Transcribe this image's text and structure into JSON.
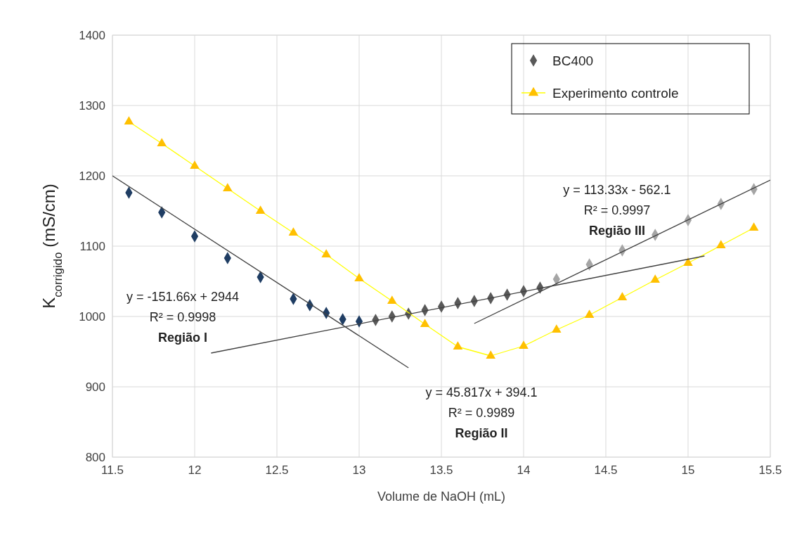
{
  "chart_data": {
    "type": "scatter",
    "xlabel": "Volume de NaOH (mL)",
    "ylabel": "K$_{corrigido}$ (mS/cm)",
    "xlim": [
      11.5,
      15.5
    ],
    "xticks": [
      11.5,
      12,
      12.5,
      13,
      13.5,
      14,
      14.5,
      15,
      15.5
    ],
    "ylim": [
      800,
      1400
    ],
    "yticks": [
      800,
      900,
      1000,
      1100,
      1200,
      1300,
      1400
    ],
    "grid": true,
    "legend": "top right",
    "series": [
      {
        "name": "BC400",
        "marker": "diamond",
        "color": "#595959",
        "x": [
          11.6,
          11.8,
          12.0,
          12.2,
          12.4,
          12.6,
          12.7,
          12.8,
          12.9,
          13.0,
          13.1,
          13.2,
          13.3,
          13.4,
          13.5,
          13.6,
          13.7,
          13.8,
          13.9,
          14.0,
          14.1,
          14.2,
          14.4,
          14.6,
          14.8,
          15.0,
          15.2,
          15.4
        ],
        "values": [
          1176,
          1148,
          1114,
          1083,
          1056,
          1025,
          1016,
          1005,
          996,
          993,
          995,
          1000,
          1004,
          1009,
          1014,
          1019,
          1022,
          1026,
          1031,
          1036,
          1041,
          1053,
          1074,
          1094,
          1116,
          1137,
          1160,
          1181
        ],
        "colors": [
          "#1f3d63",
          "#1f3d63",
          "#1f3d63",
          "#1f3d63",
          "#1f3d63",
          "#1f3d63",
          "#1f3d63",
          "#1f3d63",
          "#1f3d63",
          "#1f3d63",
          "#595959",
          "#595959",
          "#595959",
          "#595959",
          "#595959",
          "#595959",
          "#595959",
          "#595959",
          "#595959",
          "#595959",
          "#595959",
          "#a5a5a5",
          "#a5a5a5",
          "#a5a5a5",
          "#a5a5a5",
          "#a5a5a5",
          "#a5a5a5",
          "#a5a5a5"
        ]
      },
      {
        "name": "Experimento controle",
        "type": "line",
        "marker": "triangle",
        "color": "#ffff00",
        "x": [
          11.6,
          11.8,
          12.0,
          12.2,
          12.4,
          12.6,
          12.8,
          13.0,
          13.2,
          13.4,
          13.6,
          13.8,
          14.0,
          14.2,
          14.4,
          14.6,
          14.8,
          15.0,
          15.2,
          15.4
        ],
        "values": [
          1277,
          1246,
          1214,
          1182,
          1150,
          1119,
          1088,
          1054,
          1022,
          989,
          957,
          944,
          958,
          981,
          1002,
          1027,
          1052,
          1076,
          1101,
          1126
        ],
        "colors": [
          "#ffc000",
          "#ffc000",
          "#ffc000",
          "#ffc000",
          "#ffc000",
          "#ffc000",
          "#ffc000",
          "#ffc000",
          "#ffc000",
          "#ffc000",
          "#ffc000",
          "#ffc000",
          "#ffc000",
          "#ffc000",
          "#ffc000",
          "#ffc000",
          "#ffc000",
          "#ffc000",
          "#ffc000",
          "#ffc000"
        ]
      },
      {
        "type": "line",
        "marker": "none",
        "color": "#404040",
        "x": [
          11.5,
          13.3
        ],
        "values": [
          1200,
          927
        ]
      },
      {
        "type": "line",
        "marker": "none",
        "color": "#404040",
        "x": [
          12.1,
          15.1
        ],
        "values": [
          948,
          1086
        ]
      },
      {
        "type": "line",
        "marker": "none",
        "color": "#404040",
        "x": [
          13.7,
          15.5
        ],
        "values": [
          990,
          1194
        ]
      }
    ],
    "annotations": [
      "y = -151.66x + 2944\nR² = 0.9998\nRegião I",
      "y = 45.817x + 394.1\nR² = 0.9989\nRegião II",
      "y = 113.33x - 562.1\nR² = 0.9997\nRegião III"
    ]
  }
}
